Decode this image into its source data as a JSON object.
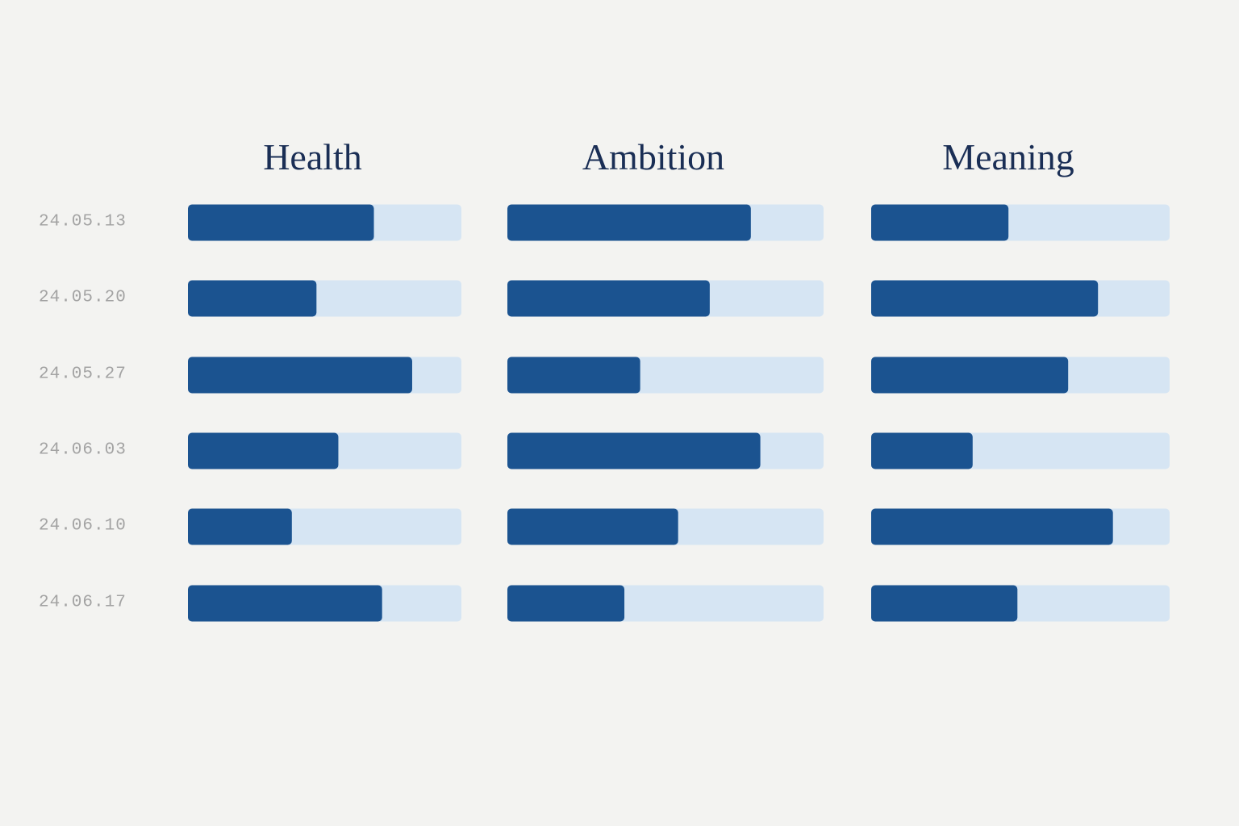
{
  "chart_data": {
    "type": "bar",
    "categories": [
      "24.05.13",
      "24.05.20",
      "24.05.27",
      "24.06.03",
      "24.06.10",
      "24.06.17"
    ],
    "xlim": [
      0,
      100
    ],
    "track_color": "#d6e5f3",
    "series": [
      {
        "name": "Health",
        "color": "#1b5390",
        "values": [
          68,
          47,
          82,
          55,
          38,
          71
        ]
      },
      {
        "name": "Ambition",
        "color": "#1b5390",
        "values": [
          77,
          64,
          42,
          80,
          54,
          37
        ]
      },
      {
        "name": "Meaning",
        "color": "#1b5390",
        "values": [
          46,
          76,
          66,
          34,
          81,
          49
        ]
      }
    ]
  }
}
